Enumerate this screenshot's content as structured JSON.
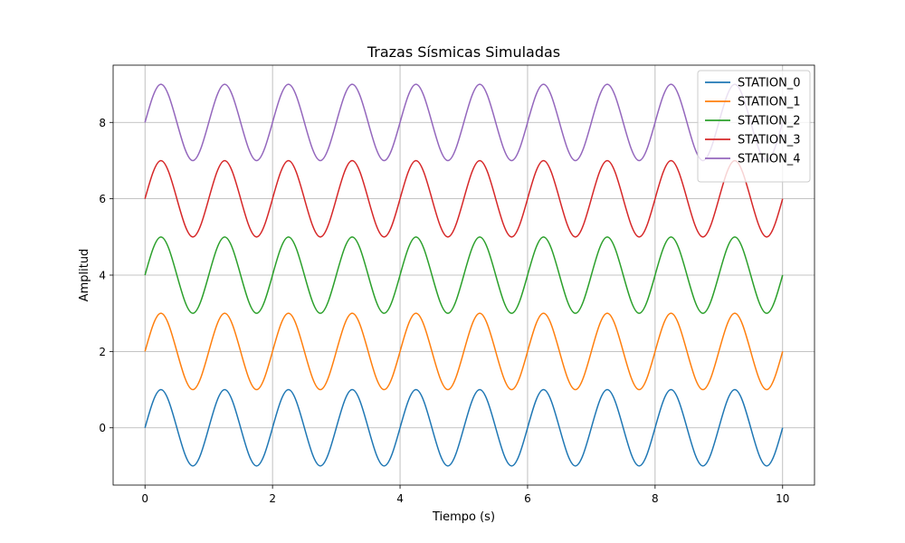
{
  "chart_data": {
    "type": "line",
    "title": "Trazas Sísmicas Simuladas",
    "xlabel": "Tiempo (s)",
    "ylabel": "Amplitud",
    "xlim": [
      -0.5,
      10.5
    ],
    "ylim": [
      -1.5,
      9.5
    ],
    "xticks": [
      0,
      2,
      4,
      6,
      8,
      10
    ],
    "yticks": [
      0,
      2,
      4,
      6,
      8
    ],
    "xtick_labels": [
      "0",
      "2",
      "4",
      "6",
      "8",
      "10"
    ],
    "ytick_labels": [
      "0",
      "2",
      "4",
      "6",
      "8"
    ],
    "grid": true,
    "legend_position": "top-right",
    "x": [
      0,
      0.25,
      0.5,
      0.75,
      1.0,
      1.25,
      1.5,
      1.75,
      2.0,
      2.25,
      2.5,
      2.75,
      3.0,
      3.25,
      3.5,
      3.75,
      4.0,
      4.25,
      4.5,
      4.75,
      5.0,
      5.25,
      5.5,
      5.75,
      6.0,
      6.25,
      6.5,
      6.75,
      7.0,
      7.25,
      7.5,
      7.75,
      8.0,
      8.25,
      8.5,
      8.75,
      9.0,
      9.25,
      9.5,
      9.75,
      10.0
    ],
    "series": [
      {
        "name": "STATION_0",
        "color": "#1f77b4",
        "values": [
          0,
          1,
          0,
          -1,
          0,
          1,
          0,
          -1,
          0,
          1,
          0,
          -1,
          0,
          1,
          0,
          -1,
          0,
          1,
          0,
          -1,
          0,
          1,
          0,
          -1,
          0,
          1,
          0,
          -1,
          0,
          1,
          0,
          -1,
          0,
          1,
          0,
          -1,
          0,
          1,
          0,
          -1,
          0
        ]
      },
      {
        "name": "STATION_1",
        "color": "#ff7f0e",
        "values": [
          2,
          3,
          2,
          1,
          2,
          3,
          2,
          1,
          2,
          3,
          2,
          1,
          2,
          3,
          2,
          1,
          2,
          3,
          2,
          1,
          2,
          3,
          2,
          1,
          2,
          3,
          2,
          1,
          2,
          3,
          2,
          1,
          2,
          3,
          2,
          1,
          2,
          3,
          2,
          1,
          2
        ]
      },
      {
        "name": "STATION_2",
        "color": "#2ca02c",
        "values": [
          4,
          5,
          4,
          3,
          4,
          5,
          4,
          3,
          4,
          5,
          4,
          3,
          4,
          5,
          4,
          3,
          4,
          5,
          4,
          3,
          4,
          5,
          4,
          3,
          4,
          5,
          4,
          3,
          4,
          5,
          4,
          3,
          4,
          5,
          4,
          3,
          4,
          5,
          4,
          3,
          4
        ]
      },
      {
        "name": "STATION_3",
        "color": "#d62728",
        "values": [
          6,
          7,
          6,
          5,
          6,
          7,
          6,
          5,
          6,
          7,
          6,
          5,
          6,
          7,
          6,
          5,
          6,
          7,
          6,
          5,
          6,
          7,
          6,
          5,
          6,
          7,
          6,
          5,
          6,
          7,
          6,
          5,
          6,
          7,
          6,
          5,
          6,
          7,
          6,
          5,
          6
        ]
      },
      {
        "name": "STATION_4",
        "color": "#9467bd",
        "values": [
          8,
          9,
          8,
          7,
          8,
          9,
          8,
          7,
          8,
          9,
          8,
          7,
          8,
          9,
          8,
          7,
          8,
          9,
          8,
          7,
          8,
          9,
          8,
          7,
          8,
          9,
          8,
          7,
          8,
          9,
          8,
          7,
          8,
          9,
          8,
          7,
          8,
          9,
          8,
          7,
          8
        ]
      }
    ]
  }
}
